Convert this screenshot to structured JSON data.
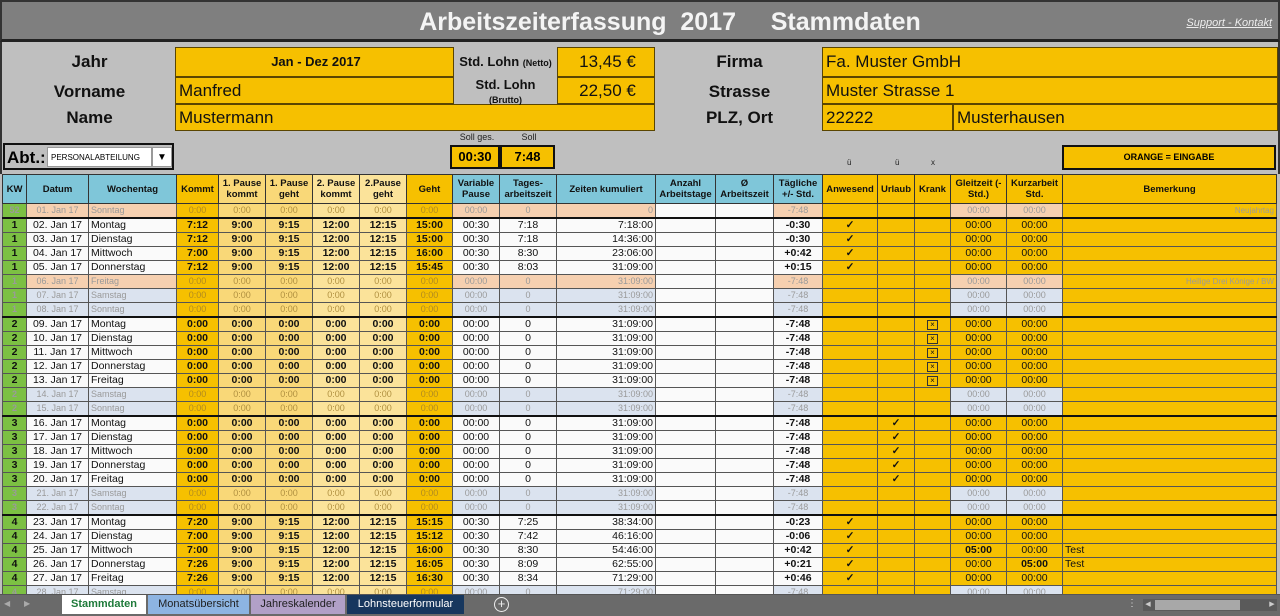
{
  "title": "Arbeitszeiterfassung  2017     Stammdaten",
  "support_link": "Support - Kontakt",
  "stammdaten": {
    "jahr_label": "Jahr",
    "jahr": "Jan - Dez 2017",
    "vorname_label": "Vorname",
    "vorname": "Manfred",
    "name_label": "Name",
    "name": "Mustermann",
    "lohn_netto_label": "Std. Lohn",
    "lohn_netto_sub": "(Netto)",
    "lohn_netto": "13,45 €",
    "lohn_brutto_label": "Std. Lohn",
    "lohn_brutto_sub": "(Brutto)",
    "lohn_brutto": "22,50 €",
    "firma_label": "Firma",
    "firma": "Fa. Muster GmbH",
    "strasse_label": "Strasse",
    "strasse": "Muster Strasse 1",
    "plz_label": "PLZ, Ort",
    "plz": "22222",
    "ort": "Musterhausen"
  },
  "abteilung": {
    "label": "Abt.:",
    "value": "PERSONALABTEILUNG"
  },
  "soll": {
    "ges_label": "Soll ges.",
    "ges": "00:30",
    "label": "Soll",
    "value": "7:48"
  },
  "legend": {
    "u1": "ü",
    "u2": "ü",
    "x": "x",
    "orange": "ORANGE = EINGABE"
  },
  "columns": [
    "KW",
    "Datum",
    "Wochentag",
    "Kommt",
    "1. Pause kommt",
    "1. Pause geht",
    "2. Pause kommt",
    "2.Pause geht",
    "Geht",
    "Variable Pause",
    "Tages-arbeitszeit",
    "Zeiten kumuliert",
    "Anzahl Arbeitstage",
    "Ø Arbeitszeit",
    "Tägliche +/- Std.",
    "Anwesend",
    "Urlaub",
    "Krank",
    "Gleitzeit (- Std.)",
    "Kurzarbeit Std.",
    "Bemerkung"
  ],
  "rows": [
    {
      "kw": "52",
      "datum": "01. Jan 17",
      "tag": "Sonntag",
      "t": [
        "0:00",
        "0:00",
        "0:00",
        "0:00",
        "0:00",
        "0:00"
      ],
      "vp": "00:00",
      "ta": "0",
      "kum": "0",
      "pm": "-7:48",
      "anw": "",
      "url": "",
      "kr": "",
      "gl": "00:00",
      "ku": "00:00",
      "bem": "Neujahrtag",
      "type": "h"
    },
    {
      "kw": "1",
      "datum": "02. Jan 17",
      "tag": "Montag",
      "t": [
        "7:12",
        "9:00",
        "9:15",
        "12:00",
        "12:15",
        "15:00"
      ],
      "vp": "00:30",
      "ta": "7:18",
      "kum": "7:18:00",
      "pm": "-0:30",
      "anw": "✓",
      "url": "",
      "kr": "",
      "gl": "00:00",
      "ku": "00:00",
      "bem": "",
      "type": "w",
      "wk": true
    },
    {
      "kw": "1",
      "datum": "03. Jan 17",
      "tag": "Dienstag",
      "t": [
        "7:12",
        "9:00",
        "9:15",
        "12:00",
        "12:15",
        "15:00"
      ],
      "vp": "00:30",
      "ta": "7:18",
      "kum": "14:36:00",
      "pm": "-0:30",
      "anw": "✓",
      "url": "",
      "kr": "",
      "gl": "00:00",
      "ku": "00:00",
      "bem": "",
      "type": "w"
    },
    {
      "kw": "1",
      "datum": "04. Jan 17",
      "tag": "Mittwoch",
      "t": [
        "7:00",
        "9:00",
        "9:15",
        "12:00",
        "12:15",
        "16:00"
      ],
      "vp": "00:30",
      "ta": "8:30",
      "kum": "23:06:00",
      "pm": "+0:42",
      "anw": "✓",
      "url": "",
      "kr": "",
      "gl": "00:00",
      "ku": "00:00",
      "bem": "",
      "type": "w"
    },
    {
      "kw": "1",
      "datum": "05. Jan 17",
      "tag": "Donnerstag",
      "t": [
        "7:12",
        "9:00",
        "9:15",
        "12:00",
        "12:15",
        "15:45"
      ],
      "vp": "00:30",
      "ta": "8:03",
      "kum": "31:09:00",
      "pm": "+0:15",
      "anw": "✓",
      "url": "",
      "kr": "",
      "gl": "00:00",
      "ku": "00:00",
      "bem": "",
      "type": "w"
    },
    {
      "kw": "1",
      "datum": "06. Jan 17",
      "tag": "Freitag",
      "t": [
        "0:00",
        "0:00",
        "0:00",
        "0:00",
        "0:00",
        "0:00"
      ],
      "vp": "00:00",
      "ta": "0",
      "kum": "31:09:00",
      "pm": "-7:48",
      "anw": "",
      "url": "",
      "kr": "",
      "gl": "00:00",
      "ku": "00:00",
      "bem": "Heilige Drei Könige / BW",
      "type": "h"
    },
    {
      "kw": "1",
      "datum": "07. Jan 17",
      "tag": "Samstag",
      "t": [
        "0:00",
        "0:00",
        "0:00",
        "0:00",
        "0:00",
        "0:00"
      ],
      "vp": "00:00",
      "ta": "0",
      "kum": "31:09:00",
      "pm": "-7:48",
      "anw": "",
      "url": "",
      "kr": "",
      "gl": "00:00",
      "ku": "00:00",
      "bem": "",
      "type": "s"
    },
    {
      "kw": "1",
      "datum": "08. Jan 17",
      "tag": "Sonntag",
      "t": [
        "0:00",
        "0:00",
        "0:00",
        "0:00",
        "0:00",
        "0:00"
      ],
      "vp": "00:00",
      "ta": "0",
      "kum": "31:09:00",
      "pm": "-7:48",
      "anw": "",
      "url": "",
      "kr": "",
      "gl": "00:00",
      "ku": "00:00",
      "bem": "",
      "type": "s"
    },
    {
      "kw": "2",
      "datum": "09. Jan 17",
      "tag": "Montag",
      "t": [
        "0:00",
        "0:00",
        "0:00",
        "0:00",
        "0:00",
        "0:00"
      ],
      "vp": "00:00",
      "ta": "0",
      "kum": "31:09:00",
      "pm": "-7:48",
      "anw": "",
      "url": "",
      "kr": "☒",
      "gl": "00:00",
      "ku": "00:00",
      "bem": "",
      "type": "w",
      "wk": true
    },
    {
      "kw": "2",
      "datum": "10. Jan 17",
      "tag": "Dienstag",
      "t": [
        "0:00",
        "0:00",
        "0:00",
        "0:00",
        "0:00",
        "0:00"
      ],
      "vp": "00:00",
      "ta": "0",
      "kum": "31:09:00",
      "pm": "-7:48",
      "anw": "",
      "url": "",
      "kr": "☒",
      "gl": "00:00",
      "ku": "00:00",
      "bem": "",
      "type": "w"
    },
    {
      "kw": "2",
      "datum": "11. Jan 17",
      "tag": "Mittwoch",
      "t": [
        "0:00",
        "0:00",
        "0:00",
        "0:00",
        "0:00",
        "0:00"
      ],
      "vp": "00:00",
      "ta": "0",
      "kum": "31:09:00",
      "pm": "-7:48",
      "anw": "",
      "url": "",
      "kr": "☒",
      "gl": "00:00",
      "ku": "00:00",
      "bem": "",
      "type": "w"
    },
    {
      "kw": "2",
      "datum": "12. Jan 17",
      "tag": "Donnerstag",
      "t": [
        "0:00",
        "0:00",
        "0:00",
        "0:00",
        "0:00",
        "0:00"
      ],
      "vp": "00:00",
      "ta": "0",
      "kum": "31:09:00",
      "pm": "-7:48",
      "anw": "",
      "url": "",
      "kr": "☒",
      "gl": "00:00",
      "ku": "00:00",
      "bem": "",
      "type": "w"
    },
    {
      "kw": "2",
      "datum": "13. Jan 17",
      "tag": "Freitag",
      "t": [
        "0:00",
        "0:00",
        "0:00",
        "0:00",
        "0:00",
        "0:00"
      ],
      "vp": "00:00",
      "ta": "0",
      "kum": "31:09:00",
      "pm": "-7:48",
      "anw": "",
      "url": "",
      "kr": "☒",
      "gl": "00:00",
      "ku": "00:00",
      "bem": "",
      "type": "w"
    },
    {
      "kw": "2",
      "datum": "14. Jan 17",
      "tag": "Samstag",
      "t": [
        "0:00",
        "0:00",
        "0:00",
        "0:00",
        "0:00",
        "0:00"
      ],
      "vp": "00:00",
      "ta": "0",
      "kum": "31:09:00",
      "pm": "-7:48",
      "anw": "",
      "url": "",
      "kr": "",
      "gl": "00:00",
      "ku": "00:00",
      "bem": "",
      "type": "s"
    },
    {
      "kw": "2",
      "datum": "15. Jan 17",
      "tag": "Sonntag",
      "t": [
        "0:00",
        "0:00",
        "0:00",
        "0:00",
        "0:00",
        "0:00"
      ],
      "vp": "00:00",
      "ta": "0",
      "kum": "31:09:00",
      "pm": "-7:48",
      "anw": "",
      "url": "",
      "kr": "",
      "gl": "00:00",
      "ku": "00:00",
      "bem": "",
      "type": "s"
    },
    {
      "kw": "3",
      "datum": "16. Jan 17",
      "tag": "Montag",
      "t": [
        "0:00",
        "0:00",
        "0:00",
        "0:00",
        "0:00",
        "0:00"
      ],
      "vp": "00:00",
      "ta": "0",
      "kum": "31:09:00",
      "pm": "-7:48",
      "anw": "",
      "url": "✓",
      "kr": "",
      "gl": "00:00",
      "ku": "00:00",
      "bem": "",
      "type": "w",
      "wk": true
    },
    {
      "kw": "3",
      "datum": "17. Jan 17",
      "tag": "Dienstag",
      "t": [
        "0:00",
        "0:00",
        "0:00",
        "0:00",
        "0:00",
        "0:00"
      ],
      "vp": "00:00",
      "ta": "0",
      "kum": "31:09:00",
      "pm": "-7:48",
      "anw": "",
      "url": "✓",
      "kr": "",
      "gl": "00:00",
      "ku": "00:00",
      "bem": "",
      "type": "w"
    },
    {
      "kw": "3",
      "datum": "18. Jan 17",
      "tag": "Mittwoch",
      "t": [
        "0:00",
        "0:00",
        "0:00",
        "0:00",
        "0:00",
        "0:00"
      ],
      "vp": "00:00",
      "ta": "0",
      "kum": "31:09:00",
      "pm": "-7:48",
      "anw": "",
      "url": "✓",
      "kr": "",
      "gl": "00:00",
      "ku": "00:00",
      "bem": "",
      "type": "w"
    },
    {
      "kw": "3",
      "datum": "19. Jan 17",
      "tag": "Donnerstag",
      "t": [
        "0:00",
        "0:00",
        "0:00",
        "0:00",
        "0:00",
        "0:00"
      ],
      "vp": "00:00",
      "ta": "0",
      "kum": "31:09:00",
      "pm": "-7:48",
      "anw": "",
      "url": "✓",
      "kr": "",
      "gl": "00:00",
      "ku": "00:00",
      "bem": "",
      "type": "w"
    },
    {
      "kw": "3",
      "datum": "20. Jan 17",
      "tag": "Freitag",
      "t": [
        "0:00",
        "0:00",
        "0:00",
        "0:00",
        "0:00",
        "0:00"
      ],
      "vp": "00:00",
      "ta": "0",
      "kum": "31:09:00",
      "pm": "-7:48",
      "anw": "",
      "url": "✓",
      "kr": "",
      "gl": "00:00",
      "ku": "00:00",
      "bem": "",
      "type": "w"
    },
    {
      "kw": "3",
      "datum": "21. Jan 17",
      "tag": "Samstag",
      "t": [
        "0:00",
        "0:00",
        "0:00",
        "0:00",
        "0:00",
        "0:00"
      ],
      "vp": "00:00",
      "ta": "0",
      "kum": "31:09:00",
      "pm": "-7:48",
      "anw": "",
      "url": "",
      "kr": "",
      "gl": "00:00",
      "ku": "00:00",
      "bem": "",
      "type": "s"
    },
    {
      "kw": "3",
      "datum": "22. Jan 17",
      "tag": "Sonntag",
      "t": [
        "0:00",
        "0:00",
        "0:00",
        "0:00",
        "0:00",
        "0:00"
      ],
      "vp": "00:00",
      "ta": "0",
      "kum": "31:09:00",
      "pm": "-7:48",
      "anw": "",
      "url": "",
      "kr": "",
      "gl": "00:00",
      "ku": "00:00",
      "bem": "",
      "type": "s"
    },
    {
      "kw": "4",
      "datum": "23. Jan 17",
      "tag": "Montag",
      "t": [
        "7:20",
        "9:00",
        "9:15",
        "12:00",
        "12:15",
        "15:15"
      ],
      "vp": "00:30",
      "ta": "7:25",
      "kum": "38:34:00",
      "pm": "-0:23",
      "anw": "✓",
      "url": "",
      "kr": "",
      "gl": "00:00",
      "ku": "00:00",
      "bem": "",
      "type": "w",
      "wk": true
    },
    {
      "kw": "4",
      "datum": "24. Jan 17",
      "tag": "Dienstag",
      "t": [
        "7:00",
        "9:00",
        "9:15",
        "12:00",
        "12:15",
        "15:12"
      ],
      "vp": "00:30",
      "ta": "7:42",
      "kum": "46:16:00",
      "pm": "-0:06",
      "anw": "✓",
      "url": "",
      "kr": "",
      "gl": "00:00",
      "ku": "00:00",
      "bem": "",
      "type": "w"
    },
    {
      "kw": "4",
      "datum": "25. Jan 17",
      "tag": "Mittwoch",
      "t": [
        "7:00",
        "9:00",
        "9:15",
        "12:00",
        "12:15",
        "16:00"
      ],
      "vp": "00:30",
      "ta": "8:30",
      "kum": "54:46:00",
      "pm": "+0:42",
      "anw": "✓",
      "url": "",
      "kr": "",
      "gl": "05:00",
      "ku": "00:00",
      "bem": "Test",
      "type": "w"
    },
    {
      "kw": "4",
      "datum": "26. Jan 17",
      "tag": "Donnerstag",
      "t": [
        "7:26",
        "9:00",
        "9:15",
        "12:00",
        "12:15",
        "16:05"
      ],
      "vp": "00:30",
      "ta": "8:09",
      "kum": "62:55:00",
      "pm": "+0:21",
      "anw": "✓",
      "url": "",
      "kr": "",
      "gl": "00:00",
      "ku": "05:00",
      "bem": "Test",
      "type": "w"
    },
    {
      "kw": "4",
      "datum": "27. Jan 17",
      "tag": "Freitag",
      "t": [
        "7:26",
        "9:00",
        "9:15",
        "12:00",
        "12:15",
        "16:30"
      ],
      "vp": "00:30",
      "ta": "8:34",
      "kum": "71:29:00",
      "pm": "+0:46",
      "anw": "✓",
      "url": "",
      "kr": "",
      "gl": "00:00",
      "ku": "00:00",
      "bem": "",
      "type": "w"
    },
    {
      "kw": "4",
      "datum": "28. Jan 17",
      "tag": "Samstag",
      "t": [
        "0:00",
        "0:00",
        "0:00",
        "0:00",
        "0:00",
        "0:00"
      ],
      "vp": "00:00",
      "ta": "0",
      "kum": "71:29:00",
      "pm": "-7:48",
      "anw": "",
      "url": "",
      "kr": "",
      "gl": "00:00",
      "ku": "00:00",
      "bem": "",
      "type": "s"
    }
  ],
  "sheet_tabs": [
    {
      "label": "Stammdaten",
      "bg": "#ffffff",
      "fg": "#1e7a3a",
      "active": true
    },
    {
      "label": "Monatsübersicht",
      "bg": "#8db4e2",
      "fg": "#1f1f1f"
    },
    {
      "label": "Jahreskalender",
      "bg": "#b1a0c7",
      "fg": "#1f1f1f"
    },
    {
      "label": "Lohnsteuerformular",
      "bg": "#17375e",
      "fg": "#ffffff"
    }
  ]
}
